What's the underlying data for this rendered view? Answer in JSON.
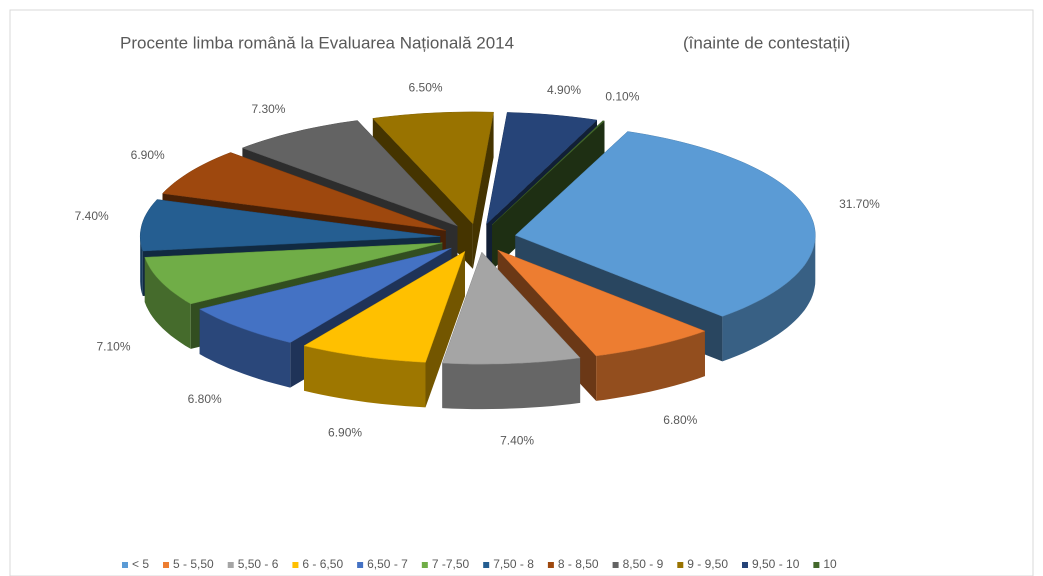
{
  "chart_data": {
    "type": "pie3d",
    "title": "Procente limba română la Evaluarea Națională 2014",
    "subtitle": "(înainte de contestații)",
    "categories": [
      "< 5",
      "5 - 5,50",
      "5,50 - 6",
      "6 - 6,50",
      "6,50 - 7",
      "7 -7,50",
      "7,50 - 8",
      "8 - 8,50",
      "8,50 - 9",
      "9 - 9,50",
      "9,50 - 10",
      "10"
    ],
    "values": [
      31.7,
      6.8,
      7.4,
      6.9,
      6.8,
      7.1,
      7.4,
      6.9,
      7.3,
      6.5,
      4.9,
      0.1
    ],
    "value_labels": [
      "31.70%",
      "6.80%",
      "7.40%",
      "6.90%",
      "6.80%",
      "7.10%",
      "7.40%",
      "6.90%",
      "7.30%",
      "6.50%",
      "4.90%",
      "0.10%"
    ],
    "colors": [
      "#5b9bd5",
      "#ed7d31",
      "#a5a5a5",
      "#ffc000",
      "#4472c4",
      "#70ad47",
      "#255e91",
      "#9e480e",
      "#636363",
      "#997300",
      "#264478",
      "#43682b"
    ],
    "legend": "bottom"
  }
}
